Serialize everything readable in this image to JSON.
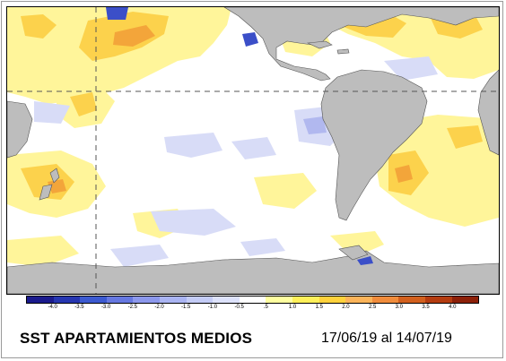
{
  "title": "SST APARTAMIENTOS MEDIOS",
  "date_range": "17/06/19 al 14/07/19",
  "colorbar": {
    "labels": [
      "-4.0",
      "-3.5",
      "-3.0",
      "-2.5",
      "-2.0",
      "-1.5",
      "-1.0",
      "-0.5",
      ".5",
      "1.0",
      "1.5",
      "2.0",
      "2.5",
      "3.0",
      "3.5",
      "4.0"
    ],
    "colors": [
      "#1a1a8c",
      "#2636b0",
      "#3c5ad0",
      "#6678e0",
      "#8c98ec",
      "#aab4f2",
      "#c4ccf6",
      "#dde2fb",
      "#ffffff",
      "#ffffa0",
      "#fff05a",
      "#ffd23c",
      "#fcb45a",
      "#f08c3c",
      "#d2601e",
      "#b43c10",
      "#8c2008"
    ]
  },
  "map": {
    "colors": {
      "land": "#bdbdbd",
      "ocean": "#ffffff",
      "warm_light": "#fff59a",
      "warm_mid": "#fcd24c",
      "warm_strong": "#f3a53a",
      "cold_light": "#d8dcf7",
      "cold_mid": "#b1b8ef",
      "cold_strong": "#3b4fc8",
      "grid": "#555555"
    }
  }
}
